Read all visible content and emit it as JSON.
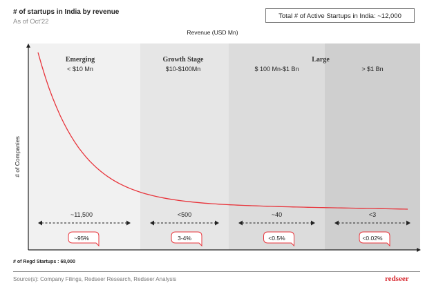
{
  "header": {
    "title": "# of startups in India by revenue",
    "subtitle": "As of Oct'22",
    "total_box": "Total # of Active Startups in India: ~12,000"
  },
  "chart_data": {
    "type": "area",
    "xlabel": "Revenue (USD Mn)",
    "ylabel": "# of Companies",
    "segments": [
      {
        "stage": "Emerging",
        "range": "< $10 Mn",
        "count": "~11,500",
        "share": "~95%",
        "color": "#f1f1f1"
      },
      {
        "stage": "Growth Stage",
        "range": "$10-$100Mn",
        "count": "<500",
        "share": "3-4%",
        "color": "#e6e6e6"
      },
      {
        "stage": "Large",
        "range": "$ 100 Mn-$1 Bn",
        "count": "~40",
        "share": "<0.5%",
        "color": "#dcdcdc"
      },
      {
        "stage": "",
        "range": "> $1 Bn",
        "count": "<3",
        "share": "<0.02%",
        "color": "#cfcfcf"
      }
    ],
    "curve_color": "#e8333a"
  },
  "footer": {
    "registered": "# of Regd Startups : 68,000",
    "source": "Source(s): Company Filings, Redseer Research, Redseer Analysis",
    "logo": "redseer"
  }
}
